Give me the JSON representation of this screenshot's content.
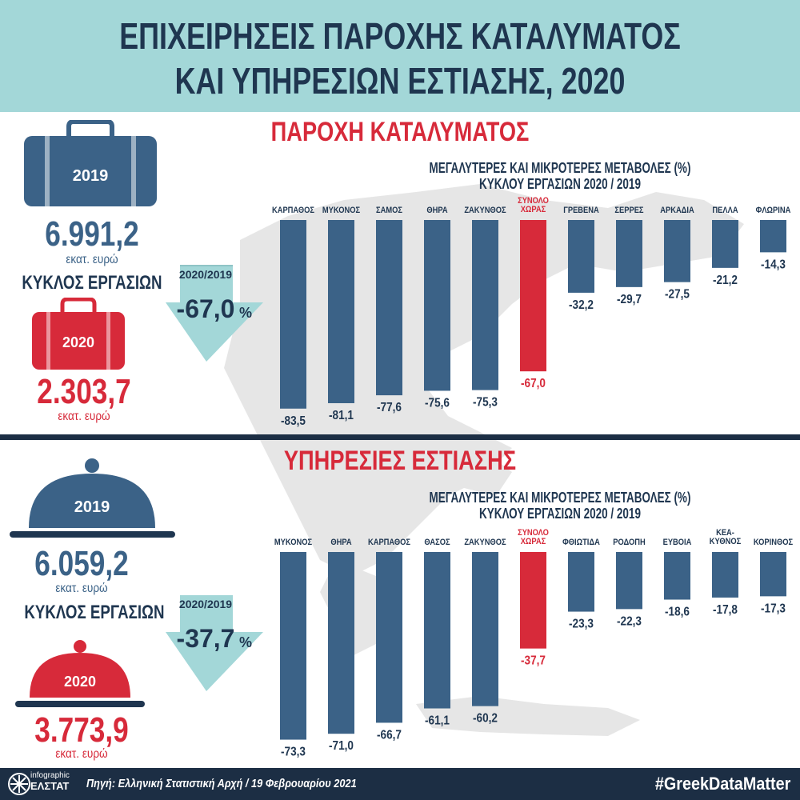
{
  "header": {
    "title_line1": "ΕΠΙΧΕΙΡΗΣΕΙΣ ΠΑΡΟΧΗΣ ΚΑΤΑΛΥΜΑΤΟΣ",
    "title_line2": "ΚΑΙ ΥΠΗΡΕΣΙΩΝ ΕΣΤΙΑΣΗΣ, 2020"
  },
  "colors": {
    "header_bg": "#a3d7d8",
    "dark_navy": "#1f3650",
    "bar_blue": "#3b6287",
    "accent_red": "#d72a3a",
    "arrow": "#a3d7d8",
    "map_gray": "#e3e3e3"
  },
  "accommodation": {
    "section_title": "ΠΑΡΟΧΗ ΚΑΤΑΛΥΜΑΤΟΣ",
    "icon": "suitcase-icon",
    "year_2019": "2019",
    "value_2019": "6.991,2",
    "unit_2019": "εκατ. ευρώ",
    "turnover_label": "ΚΥΚΛΟΣ ΕΡΓΑΣΙΩΝ",
    "change_label": "2020/2019",
    "change_value": "-67,0",
    "change_unit": "%",
    "year_2020": "2020",
    "value_2020": "2.303,7",
    "unit_2020": "εκατ. ευρώ"
  },
  "food": {
    "section_title": "ΥΠΗΡΕΣΙΕΣ ΕΣΤΙΑΣΗΣ",
    "icon": "food-cloche-icon",
    "year_2019": "2019",
    "value_2019": "6.059,2",
    "unit_2019": "εκατ. ευρώ",
    "turnover_label": "ΚΥΚΛΟΣ ΕΡΓΑΣΙΩΝ",
    "change_label": "2020/2019",
    "change_value": "-37,7",
    "change_unit": "%",
    "year_2020": "2020",
    "value_2020": "3.773,9",
    "unit_2020": "εκατ. ευρώ"
  },
  "chart_data": [
    {
      "type": "bar",
      "title": "ΜΕΓΑΛΥΤΕΡΕΣ ΚΑΙ ΜΙΚΡΟΤΕΡΕΣ ΜΕΤΑΒΟΛΕΣ (%)",
      "subtitle": "ΚΥΚΛΟΥ ΕΡΓΑΣΙΩΝ 2020 / 2019",
      "categories": [
        "ΚΑΡΠΑΘΟΣ",
        "ΜΥΚΟΝΟΣ",
        "ΣΑΜΟΣ",
        "ΘΗΡΑ",
        "ΖΑΚΥΝΘΟΣ",
        "ΣΥΝΟΛΟ ΧΩΡΑΣ",
        "ΓΡΕΒΕΝΑ",
        "ΣΕΡΡΕΣ",
        "ΑΡΚΑΔΙΑ",
        "ΠΕΛΛΑ",
        "ΦΛΩΡΙΝΑ"
      ],
      "values": [
        -83.5,
        -81.1,
        -77.6,
        -75.6,
        -75.3,
        -67.0,
        -32.2,
        -29.7,
        -27.5,
        -21.2,
        -14.3
      ],
      "value_labels": [
        "-83,5",
        "-81,1",
        "-77,6",
        "-75,6",
        "-75,3",
        "-67,0",
        "-32,2",
        "-29,7",
        "-27,5",
        "-21,2",
        "-14,3"
      ],
      "highlight_index": 5,
      "ylim": [
        -85,
        0
      ]
    },
    {
      "type": "bar",
      "title": "ΜΕΓΑΛΥΤΕΡΕΣ ΚΑΙ ΜΙΚΡΟΤΕΡΕΣ ΜΕΤΑΒΟΛΕΣ (%)",
      "subtitle": "ΚΥΚΛΟΥ ΕΡΓΑΣΙΩΝ 2020 / 2019",
      "categories": [
        "ΜΥΚΟΝΟΣ",
        "ΘΗΡΑ",
        "ΚΑΡΠΑΘΟΣ",
        "ΘΑΣΟΣ",
        "ΖΑΚΥΝΘΟΣ",
        "ΣΥΝΟΛΟ ΧΩΡΑΣ",
        "ΦΘΙΩΤΙΔΑ",
        "ΡΟΔΟΠΗ",
        "ΕΥΒΟΙΑ",
        "ΚΕΑ-ΚΥΘΝΟΣ",
        "ΚΟΡΙΝΘΟΣ"
      ],
      "values": [
        -73.3,
        -71.0,
        -66.7,
        -61.1,
        -60.2,
        -37.7,
        -23.3,
        -22.3,
        -18.6,
        -17.8,
        -17.3
      ],
      "value_labels": [
        "-73,3",
        "-71,0",
        "-66,7",
        "-61,1",
        "-60,2",
        "-37,7",
        "-23,3",
        "-22,3",
        "-18,6",
        "-17,8",
        "-17,3"
      ],
      "highlight_index": 5,
      "ylim": [
        -75,
        0
      ]
    }
  ],
  "footer": {
    "logo_line1": "infographic",
    "logo_line2": "ΕΛΣΤΑΤ",
    "source": "Πηγή: Ελληνική Στατιστική Αρχή  / 19 Φεβρουαρίου 2021",
    "hashtag": "#GreekDataMatter"
  }
}
